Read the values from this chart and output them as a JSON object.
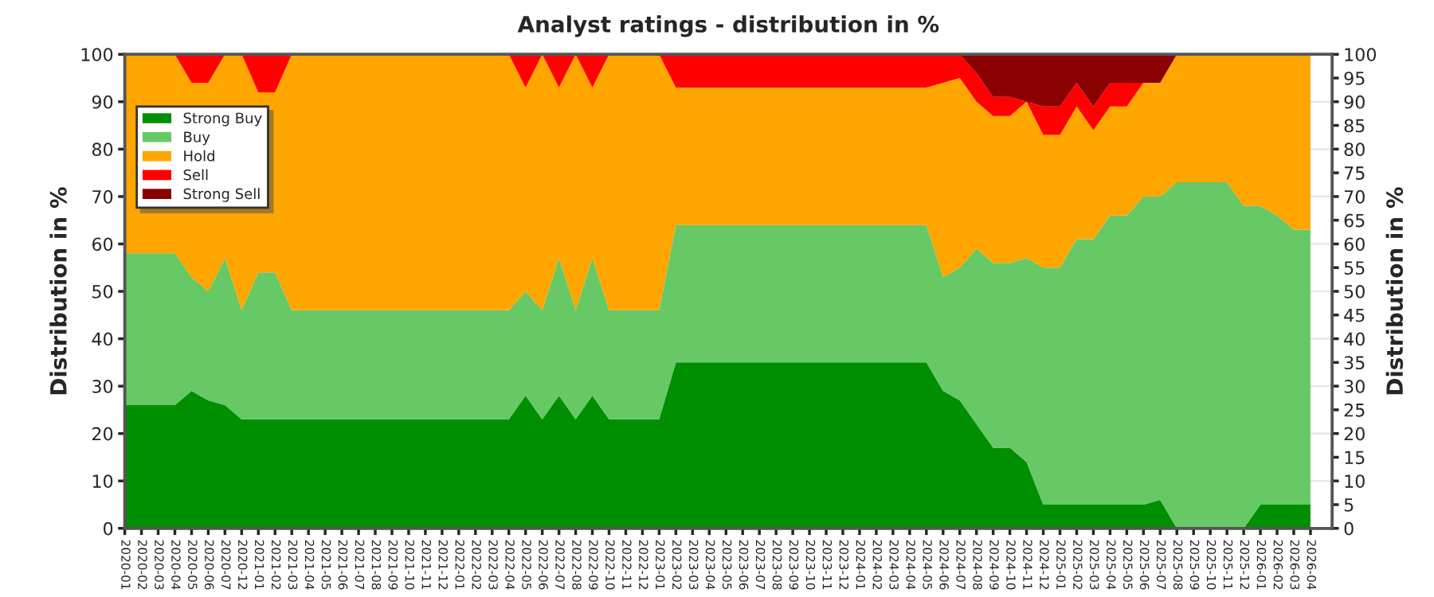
{
  "chart_data": {
    "type": "area",
    "stacked": true,
    "title": "Analyst ratings - distribution in %",
    "ylabel": "Distribution in %",
    "y2label": "Distribution in %",
    "categories": [
      "2020-01",
      "2020-02",
      "2020-03",
      "2020-04",
      "2020-05",
      "2020-06",
      "2020-07",
      "2020-12",
      "2021-01",
      "2021-02",
      "2021-03",
      "2021-04",
      "2021-05",
      "2021-06",
      "2021-07",
      "2021-08",
      "2021-09",
      "2021-10",
      "2021-11",
      "2021-12",
      "2022-01",
      "2022-02",
      "2022-03",
      "2022-04",
      "2022-05",
      "2022-06",
      "2022-07",
      "2022-08",
      "2022-09",
      "2022-10",
      "2022-11",
      "2022-12",
      "2023-01",
      "2023-02",
      "2023-03",
      "2023-04",
      "2023-05",
      "2023-06",
      "2023-07",
      "2023-08",
      "2023-09",
      "2023-10",
      "2023-11",
      "2023-12",
      "2024-01",
      "2024-02",
      "2024-03",
      "2024-04",
      "2024-05",
      "2024-06",
      "2024-07",
      "2024-08",
      "2024-09",
      "2024-10",
      "2024-11",
      "2024-12",
      "2025-01",
      "2025-02",
      "2025-03",
      "2025-04",
      "2025-05",
      "2025-06",
      "2025-07",
      "2025-08",
      "2025-09",
      "2025-10",
      "2025-11",
      "2025-12",
      "2026-01",
      "2026-02",
      "2026-03",
      "2026-04"
    ],
    "series": [
      {
        "name": "Strong Buy",
        "color": "#008f00",
        "values": [
          26,
          26,
          26,
          26,
          29,
          27,
          26,
          23,
          23,
          23,
          23,
          23,
          23,
          23,
          23,
          23,
          23,
          23,
          23,
          23,
          23,
          23,
          23,
          23,
          28,
          23,
          28,
          23,
          28,
          23,
          23,
          23,
          23,
          35,
          35,
          35,
          35,
          35,
          35,
          35,
          35,
          35,
          35,
          35,
          35,
          35,
          35,
          35,
          35,
          29,
          27,
          22,
          17,
          17,
          14,
          5,
          5,
          5,
          5,
          5,
          5,
          5,
          6,
          0,
          0,
          0,
          0,
          0,
          5,
          5,
          5,
          5
        ]
      },
      {
        "name": "Buy",
        "color": "#66c966",
        "values": [
          32,
          32,
          32,
          32,
          24,
          23,
          31,
          23,
          31,
          31,
          23,
          23,
          23,
          23,
          23,
          23,
          23,
          23,
          23,
          23,
          23,
          23,
          23,
          23,
          22,
          23,
          29,
          23,
          29,
          23,
          23,
          23,
          23,
          29,
          29,
          29,
          29,
          29,
          29,
          29,
          29,
          29,
          29,
          29,
          29,
          29,
          29,
          29,
          29,
          24,
          28,
          37,
          39,
          39,
          43,
          50,
          50,
          56,
          56,
          61,
          61,
          65,
          64,
          73,
          73,
          73,
          73,
          68,
          63,
          61,
          58,
          58
        ]
      },
      {
        "name": "Hold",
        "color": "#ffa500",
        "values": [
          42,
          42,
          42,
          42,
          41,
          44,
          43,
          54,
          38,
          38,
          54,
          54,
          54,
          54,
          54,
          54,
          54,
          54,
          54,
          54,
          54,
          54,
          54,
          54,
          43,
          54,
          36,
          54,
          36,
          54,
          54,
          54,
          54,
          29,
          29,
          29,
          29,
          29,
          29,
          29,
          29,
          29,
          29,
          29,
          29,
          29,
          29,
          29,
          29,
          41,
          40,
          31,
          31,
          31,
          33,
          28,
          28,
          28,
          23,
          23,
          23,
          24,
          24,
          27,
          27,
          27,
          27,
          32,
          32,
          34,
          37,
          37
        ]
      },
      {
        "name": "Sell",
        "color": "#ff0000",
        "values": [
          0,
          0,
          0,
          0,
          6,
          6,
          0,
          0,
          8,
          8,
          0,
          0,
          0,
          0,
          0,
          0,
          0,
          0,
          0,
          0,
          0,
          0,
          0,
          0,
          7,
          0,
          7,
          0,
          7,
          0,
          0,
          0,
          0,
          7,
          7,
          7,
          7,
          7,
          7,
          7,
          7,
          7,
          7,
          7,
          7,
          7,
          7,
          7,
          7,
          6,
          5,
          6,
          4,
          4,
          0,
          6,
          6,
          5,
          5,
          5,
          5,
          0,
          0,
          0,
          0,
          0,
          0,
          0,
          0,
          0,
          0,
          0
        ]
      },
      {
        "name": "Strong Sell",
        "color": "#8b0000",
        "values": [
          0,
          0,
          0,
          0,
          0,
          0,
          0,
          0,
          0,
          0,
          0,
          0,
          0,
          0,
          0,
          0,
          0,
          0,
          0,
          0,
          0,
          0,
          0,
          0,
          0,
          0,
          0,
          0,
          0,
          0,
          0,
          0,
          0,
          0,
          0,
          0,
          0,
          0,
          0,
          0,
          0,
          0,
          0,
          0,
          0,
          0,
          0,
          0,
          0,
          0,
          0,
          4,
          9,
          9,
          10,
          11,
          11,
          6,
          11,
          6,
          6,
          6,
          6,
          0,
          0,
          0,
          0,
          0,
          0,
          0,
          0,
          0
        ]
      }
    ],
    "ylim": [
      0,
      100
    ],
    "yticks": [
      0,
      10,
      20,
      30,
      40,
      50,
      60,
      70,
      80,
      90,
      100
    ],
    "y2lim": [
      0,
      100
    ],
    "y2ticks": [
      0,
      5,
      10,
      15,
      20,
      25,
      30,
      35,
      40,
      45,
      50,
      55,
      60,
      65,
      70,
      75,
      80,
      85,
      90,
      95,
      100
    ],
    "grid": "y",
    "legend": "top left"
  }
}
